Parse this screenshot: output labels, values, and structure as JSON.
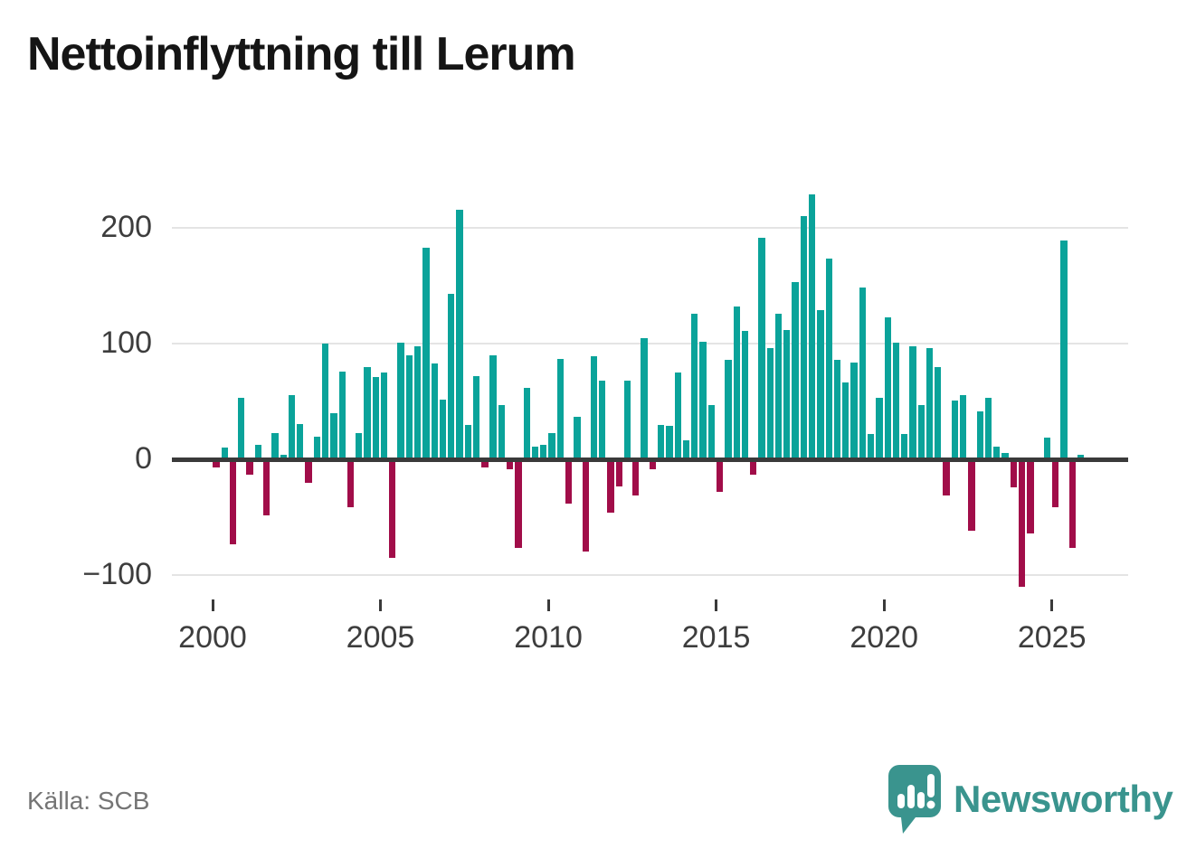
{
  "title": "Nettoinflyttning till Lerum",
  "source_label": "Källa: SCB",
  "brand": {
    "name": "Newsworthy",
    "color": "#3a948e"
  },
  "colors": {
    "positive_bar": "#0aa39a",
    "negative_bar": "#a10d49",
    "grid": "#e4e4e4",
    "zero_line": "#3a3a3a",
    "axis_text": "#3d3d3d"
  },
  "chart_data": {
    "type": "bar",
    "title": "Nettoinflyttning till Lerum",
    "xlabel": "",
    "ylabel": "",
    "grid": true,
    "y_axis": {
      "tick_values": [
        200,
        100,
        0,
        -100
      ],
      "tick_labels": [
        "200",
        "100",
        "0",
        "−100"
      ],
      "ylim": [
        -130,
        250
      ]
    },
    "x_axis": {
      "tick_labels": [
        "2000",
        "2005",
        "2010",
        "2015",
        "2020",
        "2025"
      ],
      "label_every_n_years": 5
    },
    "series_name": "Nettoinflyttning per kvartal",
    "start_year": 2000,
    "quarters_per_year": 4,
    "values_by_year": [
      {
        "year": 2000,
        "values": [
          -5,
          9,
          -71,
          52
        ]
      },
      {
        "year": 2001,
        "values": [
          -11,
          12,
          -46,
          22
        ]
      },
      {
        "year": 2002,
        "values": [
          3,
          55,
          30,
          -18
        ]
      },
      {
        "year": 2003,
        "values": [
          19,
          99,
          39,
          75
        ]
      },
      {
        "year": 2004,
        "values": [
          -39,
          22,
          79,
          70
        ]
      },
      {
        "year": 2005,
        "values": [
          74,
          -83,
          100,
          89
        ]
      },
      {
        "year": 2006,
        "values": [
          97,
          182,
          82,
          51
        ]
      },
      {
        "year": 2007,
        "values": [
          142,
          215,
          29,
          71
        ]
      },
      {
        "year": 2008,
        "values": [
          -5,
          89,
          46,
          -6
        ]
      },
      {
        "year": 2009,
        "values": [
          -74,
          61,
          10,
          12
        ]
      },
      {
        "year": 2010,
        "values": [
          22,
          86,
          -36,
          36
        ]
      },
      {
        "year": 2011,
        "values": [
          -77,
          88,
          67,
          -44
        ]
      },
      {
        "year": 2012,
        "values": [
          -21,
          67,
          -29,
          104
        ]
      },
      {
        "year": 2013,
        "values": [
          -6,
          29,
          28,
          74
        ]
      },
      {
        "year": 2014,
        "values": [
          16,
          125,
          101,
          46
        ]
      },
      {
        "year": 2015,
        "values": [
          -26,
          85,
          131,
          110
        ]
      },
      {
        "year": 2016,
        "values": [
          -11,
          191,
          95,
          125
        ]
      },
      {
        "year": 2017,
        "values": [
          111,
          152,
          209,
          228
        ]
      },
      {
        "year": 2018,
        "values": [
          128,
          173,
          85,
          66
        ]
      },
      {
        "year": 2019,
        "values": [
          83,
          148,
          21,
          52
        ]
      },
      {
        "year": 2020,
        "values": [
          122,
          100,
          21,
          97
        ]
      },
      {
        "year": 2021,
        "values": [
          46,
          95,
          79,
          -29
        ]
      },
      {
        "year": 2022,
        "values": [
          50,
          55,
          -59,
          41
        ]
      },
      {
        "year": 2023,
        "values": [
          52,
          10,
          5,
          -22
        ]
      },
      {
        "year": 2024,
        "values": [
          -108,
          -62,
          0,
          18
        ]
      },
      {
        "year": 2025,
        "values": [
          -39,
          188,
          -74,
          3
        ]
      }
    ]
  }
}
